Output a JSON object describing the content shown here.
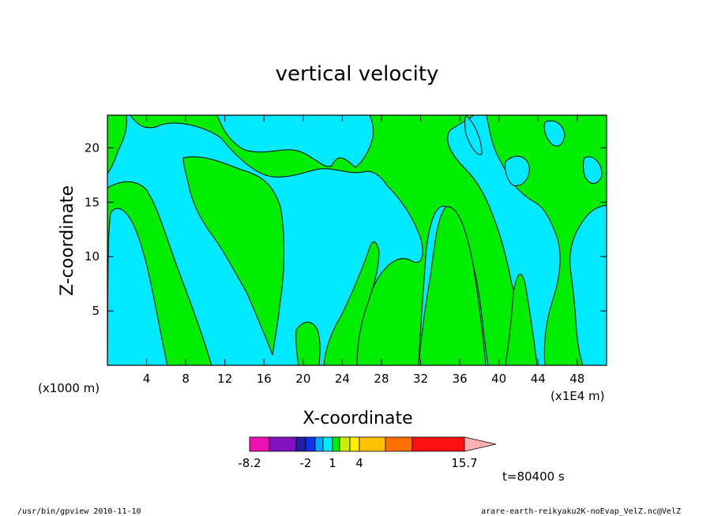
{
  "chart_data": {
    "type": "heatmap",
    "title": "vertical velocity",
    "xlabel": "X-coordinate",
    "ylabel": "Z-coordinate",
    "x_unit_label": "(x1000 m)",
    "x_scale_label": "(x1E4 m)",
    "xlim": [
      0,
      51
    ],
    "ylim": [
      0,
      23
    ],
    "x_ticks": [
      "4",
      "8",
      "12",
      "16",
      "20",
      "24",
      "28",
      "32",
      "36",
      "40",
      "44",
      "48"
    ],
    "y_ticks": [
      "5",
      "10",
      "15",
      "20"
    ],
    "x_tick_values": [
      4,
      8,
      12,
      16,
      20,
      24,
      28,
      32,
      36,
      40,
      44,
      48
    ],
    "y_tick_values": [
      5,
      10,
      15,
      20
    ],
    "field_levels": [
      {
        "range": [
          0,
          1
        ],
        "color": "#00eaff"
      },
      {
        "range": [
          1,
          2
        ],
        "color": "#00ee00"
      }
    ],
    "colorbar": {
      "min_label": "-8.2",
      "max_label": "15.7",
      "tick_labels": [
        "-8.2",
        "-2",
        "1",
        "4",
        "15.7"
      ],
      "colors": [
        "#ee10b0",
        "#8010c0",
        "#2020a0",
        "#1030f0",
        "#00a8ff",
        "#00eaff",
        "#00ee00",
        "#ccee00",
        "#ffee00",
        "#ffc000",
        "#ff7000",
        "#ff1010",
        "#ff8080",
        "#ffb0b0"
      ]
    },
    "time_label": "t=80400 s",
    "footer_left": "/usr/bin/gpview  2010-11-10",
    "footer_right": "arare-earth-reikyaku2K-noEvap_VelZ.nc@VelZ"
  }
}
